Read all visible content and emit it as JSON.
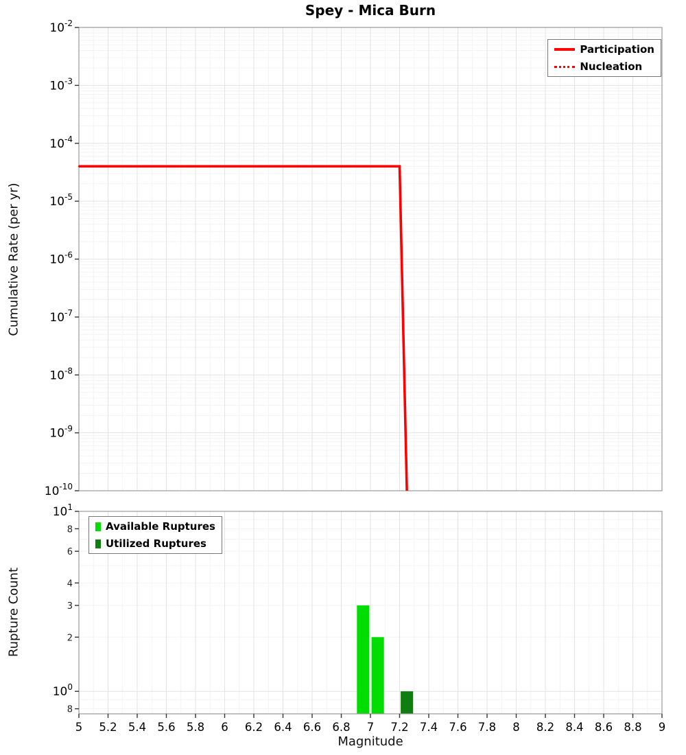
{
  "title": "Spey - Mica Burn",
  "chart_data": [
    {
      "type": "line",
      "title": "Spey - Mica Burn",
      "xlabel": "Magnitude",
      "ylabel": "Cumulative Rate (per yr)",
      "xlim": [
        5,
        9
      ],
      "yscale": "log",
      "ylim": [
        1e-10,
        0.01
      ],
      "y_tick_exponents": [
        -2,
        -3,
        -4,
        -5,
        -6,
        -7,
        -8,
        -9,
        -10
      ],
      "grid": "on",
      "legend_position": "top-right",
      "series": [
        {
          "name": "Participation",
          "color": "#ff0000",
          "style": "solid",
          "points": [
            [
              5.0,
              4e-05
            ],
            [
              7.2,
              4e-05
            ],
            [
              7.25,
              1e-10
            ]
          ]
        },
        {
          "name": "Nucleation",
          "color": "#ff0000",
          "style": "dotted",
          "points": [
            [
              5.0,
              4e-05
            ],
            [
              7.2,
              4e-05
            ],
            [
              7.25,
              1e-10
            ]
          ]
        }
      ]
    },
    {
      "type": "bar",
      "xlabel": "Magnitude",
      "ylabel": "Rupture Count",
      "xlim": [
        5,
        9
      ],
      "x_tick_labels": [
        "5",
        "5.2",
        "5.4",
        "5.6",
        "5.8",
        "6",
        "6.2",
        "6.4",
        "6.6",
        "6.8",
        "7",
        "7.2",
        "7.4",
        "7.6",
        "7.8",
        "8",
        "8.2",
        "8.4",
        "8.6",
        "8.8",
        "9"
      ],
      "yscale": "log",
      "ylim": [
        0.75,
        10
      ],
      "y_ticks": [
        {
          "value": 10,
          "base": "10",
          "exp": "1"
        },
        {
          "value": 8,
          "text": "8"
        },
        {
          "value": 6,
          "text": "6"
        },
        {
          "value": 4,
          "text": "4"
        },
        {
          "value": 3,
          "text": "3"
        },
        {
          "value": 2,
          "text": "2"
        },
        {
          "value": 1,
          "base": "10",
          "exp": "0"
        },
        {
          "value": 0.8,
          "text": "8"
        }
      ],
      "bar_width": 0.085,
      "grid": "on",
      "legend_position": "top-left",
      "series": [
        {
          "name": "Available Ruptures",
          "color": "#00dd00",
          "bars": [
            {
              "magnitude": 6.95,
              "count": 3
            },
            {
              "magnitude": 7.05,
              "count": 2
            }
          ]
        },
        {
          "name": "Utilized Ruptures",
          "color": "#0f7d0f",
          "bars": [
            {
              "magnitude": 7.25,
              "count": 1
            }
          ]
        }
      ]
    }
  ]
}
